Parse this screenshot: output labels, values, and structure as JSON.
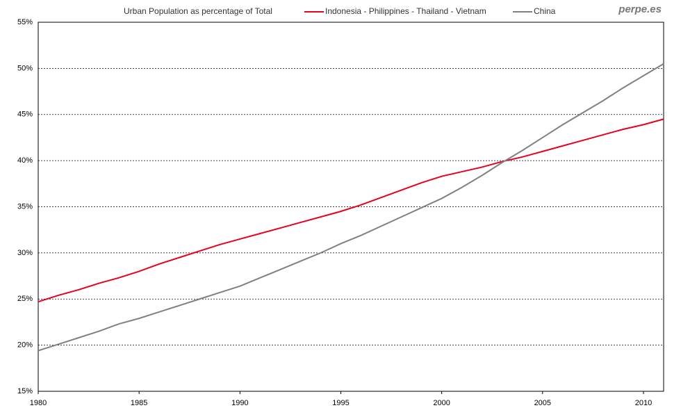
{
  "chart_data": {
    "type": "line",
    "title": "Urban Population as percentage of Total",
    "watermark": "perpe.es",
    "x": [
      1980,
      1981,
      1982,
      1983,
      1984,
      1985,
      1986,
      1987,
      1988,
      1989,
      1990,
      1991,
      1992,
      1993,
      1994,
      1995,
      1996,
      1997,
      1998,
      1999,
      2000,
      2001,
      2002,
      2003,
      2004,
      2005,
      2006,
      2007,
      2008,
      2009,
      2010,
      2011
    ],
    "series": [
      {
        "name": "Indonesia - Philippines - Thailand - Vietnam",
        "color": "#e8001c",
        "values": [
          24.7,
          25.4,
          26.0,
          26.7,
          27.3,
          28.0,
          28.8,
          29.5,
          30.2,
          30.9,
          31.5,
          32.1,
          32.7,
          33.3,
          33.9,
          34.5,
          35.2,
          36.0,
          36.8,
          37.6,
          38.3,
          38.8,
          39.3,
          39.9,
          40.4,
          41.0,
          41.6,
          42.2,
          42.8,
          43.4,
          43.9,
          44.5
        ]
      },
      {
        "name": "China",
        "color": "#808080",
        "values": [
          19.4,
          20.1,
          20.8,
          21.5,
          22.3,
          22.9,
          23.6,
          24.3,
          25.0,
          25.7,
          26.4,
          27.3,
          28.2,
          29.1,
          30.0,
          31.0,
          31.9,
          32.9,
          33.9,
          34.9,
          35.9,
          37.1,
          38.4,
          39.8,
          41.1,
          42.5,
          43.9,
          45.2,
          46.5,
          47.9,
          49.2,
          50.5
        ]
      }
    ],
    "xlim": [
      1980,
      2011
    ],
    "xticks": [
      1980,
      1985,
      1990,
      1995,
      2000,
      2005,
      2010
    ],
    "ylim": [
      15,
      55
    ],
    "yticks": [
      {
        "value": 15,
        "label": "15%"
      },
      {
        "value": 20,
        "label": "20%"
      },
      {
        "value": 25,
        "label": "25%"
      },
      {
        "value": 30,
        "label": "30%"
      },
      {
        "value": 35,
        "label": "35%"
      },
      {
        "value": 40,
        "label": "40%"
      },
      {
        "value": 45,
        "label": "45%"
      },
      {
        "value": 50,
        "label": "50%"
      },
      {
        "value": 55,
        "label": "55%"
      }
    ],
    "grid": true
  }
}
